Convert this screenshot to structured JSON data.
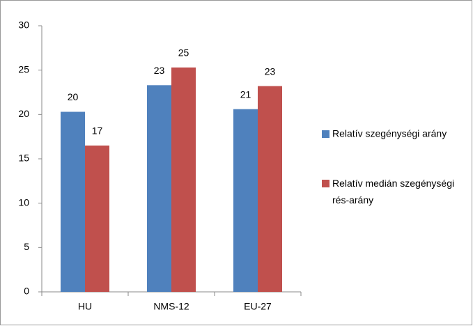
{
  "chart_data": {
    "type": "bar",
    "categories": [
      "HU",
      "NMS-12",
      "EU-27"
    ],
    "series": [
      {
        "name": "Relatív szegénységi arány",
        "color": "#4f81bd",
        "values": [
          20.3,
          23.3,
          20.6
        ],
        "value_labels": [
          "20",
          "23",
          "21"
        ]
      },
      {
        "name": "Relatív medián szegénységi rés-arány",
        "color": "#c0504d",
        "values": [
          16.5,
          25.3,
          23.2
        ],
        "value_labels": [
          "17",
          "25",
          "23"
        ]
      }
    ],
    "ylim": [
      0,
      30
    ],
    "yticks": [
      0,
      5,
      10,
      15,
      20,
      25,
      30
    ],
    "grid": false,
    "legend": "right"
  }
}
